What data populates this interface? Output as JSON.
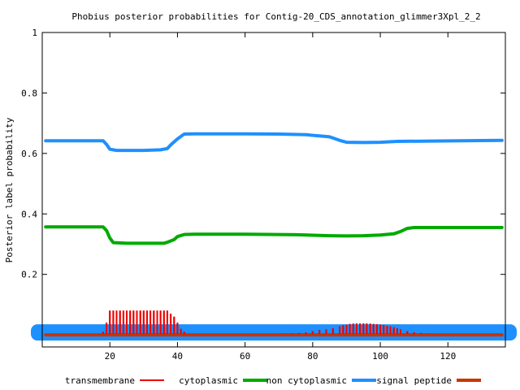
{
  "chart_data": {
    "type": "line",
    "title": "Phobius posterior probabilities for Contig-20_CDS_annotation_glimmer3Xpl_2_2",
    "xlabel": "",
    "ylabel": "Posterior label probability",
    "xlim": [
      0,
      137
    ],
    "ylim": [
      -0.04,
      1
    ],
    "x_ticks": [
      20,
      40,
      60,
      80,
      100,
      120
    ],
    "y_ticks": [
      0.2,
      0.4,
      0.6,
      0.8,
      1
    ],
    "y_tick_labels": [
      "0.2",
      "0.4",
      "0.6",
      "0.8",
      "1"
    ],
    "grid": false,
    "legend_position": "bottom",
    "series": [
      {
        "name": "transmembrane",
        "style": "impulses",
        "color": "#ee0000",
        "points": [
          [
            18,
            0.01
          ],
          [
            19,
            0.04
          ],
          [
            20,
            0.08
          ],
          [
            21,
            0.08
          ],
          [
            22,
            0.08
          ],
          [
            23,
            0.08
          ],
          [
            24,
            0.08
          ],
          [
            25,
            0.08
          ],
          [
            26,
            0.08
          ],
          [
            27,
            0.08
          ],
          [
            28,
            0.08
          ],
          [
            29,
            0.08
          ],
          [
            30,
            0.08
          ],
          [
            31,
            0.08
          ],
          [
            32,
            0.08
          ],
          [
            33,
            0.08
          ],
          [
            34,
            0.08
          ],
          [
            35,
            0.08
          ],
          [
            36,
            0.08
          ],
          [
            37,
            0.08
          ],
          [
            38,
            0.07
          ],
          [
            39,
            0.06
          ],
          [
            40,
            0.04
          ],
          [
            41,
            0.02
          ],
          [
            42,
            0.01
          ],
          [
            66,
            0.002
          ],
          [
            68,
            0.003
          ],
          [
            70,
            0.003
          ],
          [
            72,
            0.004
          ],
          [
            74,
            0.005
          ],
          [
            76,
            0.006
          ],
          [
            78,
            0.008
          ],
          [
            80,
            0.012
          ],
          [
            82,
            0.016
          ],
          [
            84,
            0.018
          ],
          [
            86,
            0.022
          ],
          [
            88,
            0.028
          ],
          [
            89,
            0.032
          ],
          [
            90,
            0.034
          ],
          [
            91,
            0.036
          ],
          [
            92,
            0.037
          ],
          [
            93,
            0.038
          ],
          [
            94,
            0.038
          ],
          [
            95,
            0.038
          ],
          [
            96,
            0.038
          ],
          [
            97,
            0.037
          ],
          [
            98,
            0.036
          ],
          [
            99,
            0.035
          ],
          [
            100,
            0.034
          ],
          [
            101,
            0.032
          ],
          [
            102,
            0.03
          ],
          [
            103,
            0.028
          ],
          [
            104,
            0.025
          ],
          [
            105,
            0.022
          ],
          [
            106,
            0.018
          ],
          [
            108,
            0.012
          ],
          [
            110,
            0.008
          ],
          [
            112,
            0.006
          ],
          [
            114,
            0.004
          ],
          [
            116,
            0.003
          ],
          [
            118,
            0.002
          ]
        ]
      },
      {
        "name": "cytoplasmic",
        "style": "line",
        "color": "#00aa00",
        "points": [
          [
            1,
            0.357
          ],
          [
            18,
            0.357
          ],
          [
            19,
            0.345
          ],
          [
            20,
            0.32
          ],
          [
            21,
            0.305
          ],
          [
            25,
            0.303
          ],
          [
            30,
            0.303
          ],
          [
            36,
            0.303
          ],
          [
            37,
            0.306
          ],
          [
            39,
            0.315
          ],
          [
            40,
            0.325
          ],
          [
            42,
            0.332
          ],
          [
            45,
            0.333
          ],
          [
            60,
            0.333
          ],
          [
            75,
            0.331
          ],
          [
            82,
            0.329
          ],
          [
            85,
            0.328
          ],
          [
            90,
            0.327
          ],
          [
            95,
            0.328
          ],
          [
            100,
            0.33
          ],
          [
            104,
            0.334
          ],
          [
            106,
            0.342
          ],
          [
            108,
            0.352
          ],
          [
            110,
            0.355
          ],
          [
            136,
            0.355
          ]
        ]
      },
      {
        "name": "non cytoplasmic",
        "style": "line",
        "color": "#1e90ff",
        "points": [
          [
            1,
            0.642
          ],
          [
            18,
            0.642
          ],
          [
            19,
            0.63
          ],
          [
            20,
            0.614
          ],
          [
            22,
            0.61
          ],
          [
            30,
            0.61
          ],
          [
            35,
            0.612
          ],
          [
            37,
            0.616
          ],
          [
            38,
            0.628
          ],
          [
            40,
            0.648
          ],
          [
            42,
            0.664
          ],
          [
            45,
            0.665
          ],
          [
            60,
            0.665
          ],
          [
            70,
            0.664
          ],
          [
            78,
            0.662
          ],
          [
            82,
            0.658
          ],
          [
            85,
            0.655
          ],
          [
            88,
            0.643
          ],
          [
            90,
            0.637
          ],
          [
            95,
            0.636
          ],
          [
            100,
            0.637
          ],
          [
            105,
            0.64
          ],
          [
            115,
            0.641
          ],
          [
            136,
            0.643
          ]
        ]
      },
      {
        "name": "signal peptide",
        "style": "line",
        "color": "#cc3300",
        "points": [
          [
            1,
            0.0
          ],
          [
            136,
            0.0
          ]
        ]
      }
    ]
  }
}
